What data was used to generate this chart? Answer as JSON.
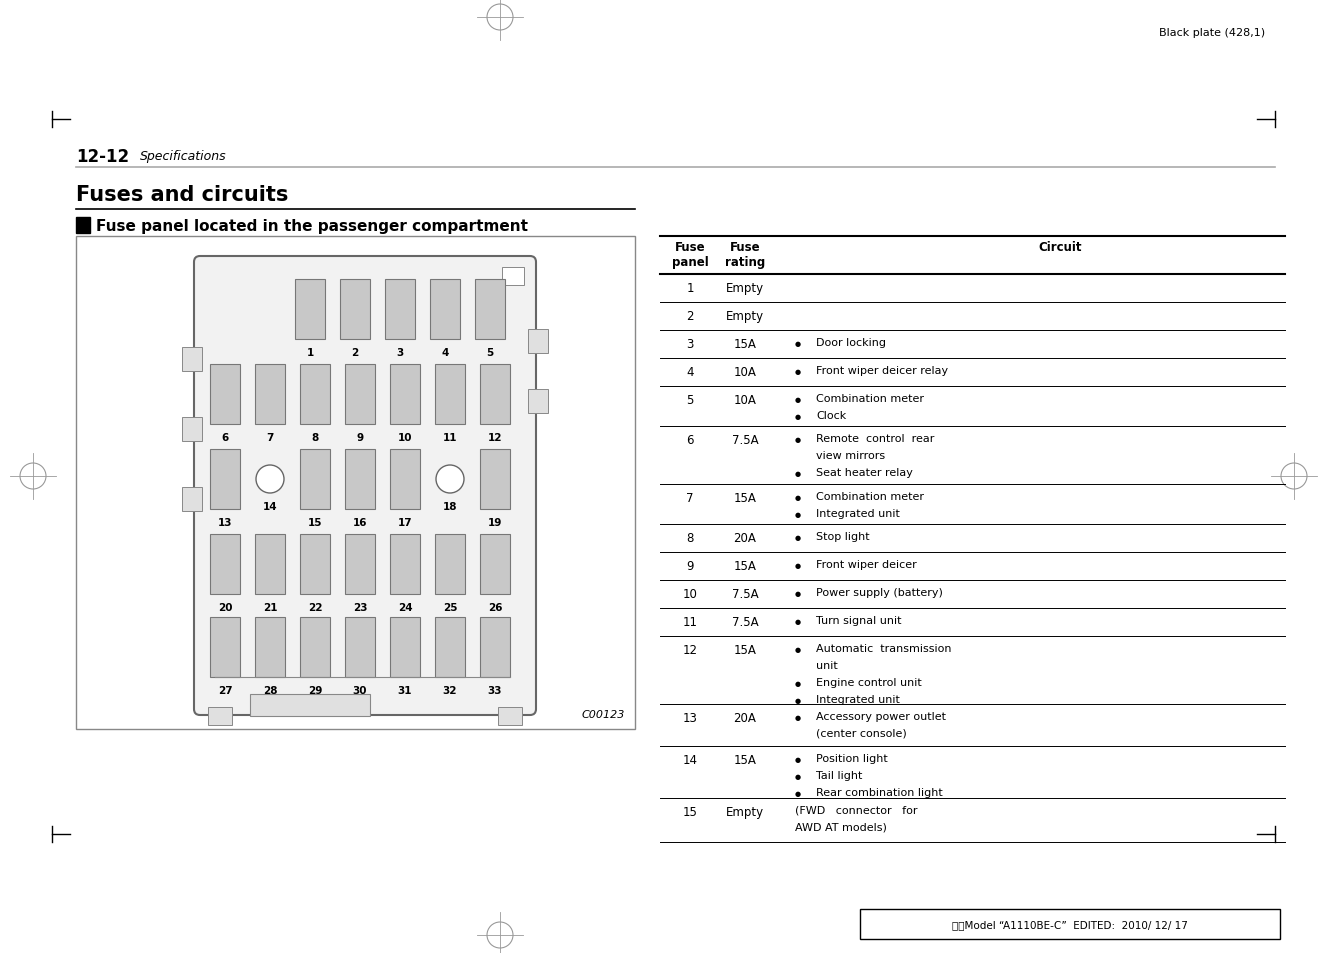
{
  "page_header": "Black plate (428,1)",
  "section_number": "12-12",
  "section_title": "Specifications",
  "main_title": "Fuses and circuits",
  "sub_title": "Fuse panel located in the passenger compartment",
  "image_label": "C00123",
  "footer_text": "北米Model “A1110BE-C”  EDITED:  2010/ 12/ 17",
  "table_rows": [
    {
      "panel": "1",
      "rating": "Empty",
      "n_bullets": 0,
      "circuit_lines": []
    },
    {
      "panel": "2",
      "rating": "Empty",
      "n_bullets": 0,
      "circuit_lines": []
    },
    {
      "panel": "3",
      "rating": "15A",
      "n_bullets": 1,
      "circuit_lines": [
        "Door locking"
      ]
    },
    {
      "panel": "4",
      "rating": "10A",
      "n_bullets": 1,
      "circuit_lines": [
        "Front wiper deicer relay"
      ]
    },
    {
      "panel": "5",
      "rating": "10A",
      "n_bullets": 2,
      "circuit_lines": [
        "Combination meter",
        "Clock"
      ]
    },
    {
      "panel": "6",
      "rating": "7.5A",
      "n_bullets": 2,
      "circuit_lines": [
        "Remote  control  rear",
        "view mirrors",
        "Seat heater relay"
      ]
    },
    {
      "panel": "7",
      "rating": "15A",
      "n_bullets": 2,
      "circuit_lines": [
        "Combination meter",
        "Integrated unit"
      ]
    },
    {
      "panel": "8",
      "rating": "20A",
      "n_bullets": 1,
      "circuit_lines": [
        "Stop light"
      ]
    },
    {
      "panel": "9",
      "rating": "15A",
      "n_bullets": 1,
      "circuit_lines": [
        "Front wiper deicer"
      ]
    },
    {
      "panel": "10",
      "rating": "7.5A",
      "n_bullets": 1,
      "circuit_lines": [
        "Power supply (battery)"
      ]
    },
    {
      "panel": "11",
      "rating": "7.5A",
      "n_bullets": 1,
      "circuit_lines": [
        "Turn signal unit"
      ]
    },
    {
      "panel": "12",
      "rating": "15A",
      "n_bullets": 3,
      "circuit_lines": [
        "Automatic  transmission",
        "unit",
        "Engine control unit",
        "Integrated unit"
      ]
    },
    {
      "panel": "13",
      "rating": "20A",
      "n_bullets": 1,
      "circuit_lines": [
        "Accessory power outlet",
        "(center console)"
      ]
    },
    {
      "panel": "14",
      "rating": "15A",
      "n_bullets": 3,
      "circuit_lines": [
        "Position light",
        "Tail light",
        "Rear combination light"
      ]
    },
    {
      "panel": "15",
      "rating": "Empty",
      "n_bullets": 0,
      "circuit_lines": [
        "(FWD   connector   for",
        "AWD AT models)"
      ]
    }
  ],
  "colors": {
    "background": "#ffffff",
    "text": "#000000",
    "fuse_fill": "#c0c0c0",
    "fuse_stroke": "#777777",
    "panel_fill": "#f8f8f8",
    "panel_stroke": "#777777"
  }
}
